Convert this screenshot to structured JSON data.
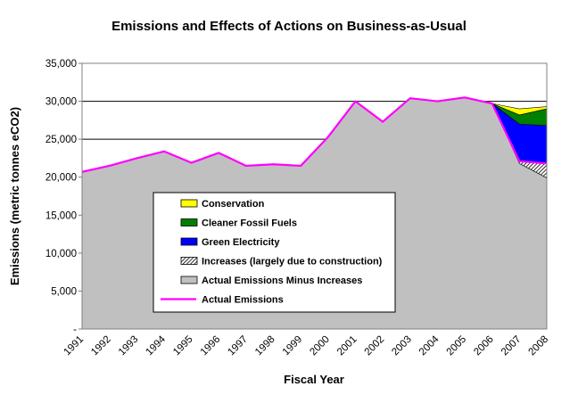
{
  "chart_data": {
    "type": "area",
    "title": "Emissions and Effects of Actions on Business-as-Usual",
    "xlabel": "Fiscal Year",
    "ylabel": "Emissions (metric tonnes eCO2)",
    "ylim": [
      0,
      35000
    ],
    "y_ticks": [
      0,
      5000,
      10000,
      15000,
      20000,
      25000,
      30000,
      35000
    ],
    "y_tick_labels": [
      "-",
      "5,000",
      "10,000",
      "15,000",
      "20,000",
      "25,000",
      "30,000",
      "35,000"
    ],
    "grid": true,
    "legend_position": "center-left",
    "x": [
      "1991",
      "1992",
      "1993",
      "1994",
      "1995",
      "1996",
      "1997",
      "1998",
      "1999",
      "2000",
      "2001",
      "2002",
      "2003",
      "2004",
      "2005",
      "2006",
      "2007",
      "2008"
    ],
    "series": [
      {
        "name": "Actual Emissions Minus Increases",
        "kind": "area",
        "color": "#c0c0c0",
        "values": [
          20700,
          21500,
          22500,
          23400,
          21900,
          23200,
          21500,
          21700,
          21500,
          25300,
          30000,
          27300,
          30400,
          30000,
          30500,
          29700,
          21800,
          19900
        ]
      },
      {
        "name": "Increases (largely due to construction)",
        "kind": "hatched-band",
        "color": "#000000",
        "values": [
          0,
          0,
          0,
          0,
          0,
          0,
          0,
          0,
          0,
          0,
          0,
          0,
          0,
          0,
          0,
          0,
          300,
          1900
        ]
      },
      {
        "name": "Green Electricity",
        "kind": "band",
        "color": "#0000ff",
        "values": [
          0,
          0,
          0,
          0,
          0,
          0,
          0,
          0,
          0,
          0,
          0,
          0,
          0,
          0,
          0,
          0,
          4900,
          5000
        ]
      },
      {
        "name": "Cleaner Fossil Fuels",
        "kind": "band",
        "color": "#008000",
        "values": [
          0,
          0,
          0,
          0,
          0,
          0,
          0,
          0,
          0,
          0,
          0,
          0,
          0,
          0,
          0,
          0,
          1200,
          2200
        ]
      },
      {
        "name": "Conservation",
        "kind": "band",
        "color": "#ffff00",
        "values": [
          0,
          0,
          0,
          0,
          0,
          0,
          0,
          0,
          0,
          0,
          0,
          0,
          0,
          0,
          0,
          0,
          800,
          300
        ]
      },
      {
        "name": "Actual Emissions",
        "kind": "line",
        "color": "#ff00ff",
        "values": [
          20700,
          21500,
          22500,
          23400,
          21900,
          23200,
          21500,
          21700,
          21500,
          25300,
          30000,
          27300,
          30400,
          30000,
          30500,
          29700,
          22100,
          21800
        ]
      }
    ],
    "legend": [
      {
        "label": "Conservation",
        "color": "#ffff00",
        "marker": "swatch"
      },
      {
        "label": "Cleaner Fossil Fuels",
        "color": "#008000",
        "marker": "swatch"
      },
      {
        "label": "Green Electricity",
        "color": "#0000ff",
        "marker": "swatch"
      },
      {
        "label": "Increases (largely due to construction)",
        "color": "#000000",
        "marker": "hatch"
      },
      {
        "label": "Actual Emissions Minus Increases",
        "color": "#c0c0c0",
        "marker": "swatch"
      },
      {
        "label": "Actual Emissions",
        "color": "#ff00ff",
        "marker": "line"
      }
    ]
  }
}
